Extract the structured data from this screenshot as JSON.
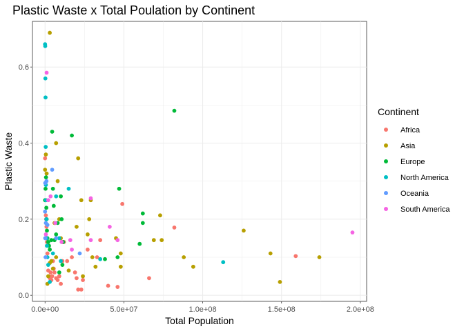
{
  "chart_data": {
    "type": "scatter",
    "title": "Plastic Waste x Total Poulation by Continent",
    "xlabel": "Total Population",
    "ylabel": "Plastic Waste",
    "xlim": [
      -8000000,
      204000000
    ],
    "ylim": [
      -0.016,
      0.72
    ],
    "x_ticks": [
      0,
      50000000,
      100000000,
      150000000,
      200000000
    ],
    "x_tick_labels": [
      "0.0e+00",
      "5.0e+07",
      "1.0e+08",
      "1.5e+08",
      "2.0e+08"
    ],
    "y_ticks": [
      0.0,
      0.2,
      0.4,
      0.6
    ],
    "y_tick_labels": [
      "0.0",
      "0.2",
      "0.4",
      "0.6"
    ],
    "grid": true,
    "legend": {
      "title": "Continent",
      "placement": "right"
    },
    "series": [
      {
        "name": "Africa",
        "color": "#F8766D",
        "points": [
          [
            0,
            0.36
          ],
          [
            300000,
            0.25
          ],
          [
            500000,
            0.21
          ],
          [
            700000,
            0.2
          ],
          [
            900000,
            0.18
          ],
          [
            1200000,
            0.14
          ],
          [
            1500000,
            0.11
          ],
          [
            2000000,
            0.065
          ],
          [
            2500000,
            0.05
          ],
          [
            3000000,
            0.045
          ],
          [
            3500000,
            0.06
          ],
          [
            4000000,
            0.04
          ],
          [
            4500000,
            0.05
          ],
          [
            5000000,
            0.09
          ],
          [
            5500000,
            0.07
          ],
          [
            6000000,
            0.06
          ],
          [
            7000000,
            0.045
          ],
          [
            8000000,
            0.04
          ],
          [
            9000000,
            0.05
          ],
          [
            10000000,
            0.03
          ],
          [
            11000000,
            0.09
          ],
          [
            12000000,
            0.14
          ],
          [
            14000000,
            0.09
          ],
          [
            17000000,
            0.1
          ],
          [
            19000000,
            0.06
          ],
          [
            20000000,
            0.045
          ],
          [
            21000000,
            0.015
          ],
          [
            23000000,
            0.015
          ],
          [
            24000000,
            0.04
          ],
          [
            27000000,
            0.12
          ],
          [
            33000000,
            0.1
          ],
          [
            35000000,
            0.145
          ],
          [
            40000000,
            0.025
          ],
          [
            46000000,
            0.022
          ],
          [
            49000000,
            0.24
          ],
          [
            66000000,
            0.045
          ],
          [
            82000000,
            0.178
          ],
          [
            159000000,
            0.103
          ]
        ]
      },
      {
        "name": "Asia",
        "color": "#B79F00",
        "points": [
          [
            3000000,
            0.69
          ],
          [
            500000,
            0.37
          ],
          [
            0,
            0.33
          ],
          [
            1000000,
            0.32
          ],
          [
            7000000,
            0.4
          ],
          [
            21000000,
            0.36
          ],
          [
            8000000,
            0.3
          ],
          [
            23000000,
            0.25
          ],
          [
            28000000,
            0.2
          ],
          [
            29000000,
            0.25
          ],
          [
            20000000,
            0.18
          ],
          [
            9000000,
            0.2
          ],
          [
            6000000,
            0.19
          ],
          [
            1500000,
            0.03
          ],
          [
            2000000,
            0.05
          ],
          [
            3000000,
            0.085
          ],
          [
            4000000,
            0.09
          ],
          [
            5000000,
            0.07
          ],
          [
            7000000,
            0.1
          ],
          [
            10000000,
            0.15
          ],
          [
            11000000,
            0.14
          ],
          [
            15000000,
            0.065
          ],
          [
            24000000,
            0.05
          ],
          [
            27000000,
            0.16
          ],
          [
            30000000,
            0.1
          ],
          [
            32000000,
            0.075
          ],
          [
            45000000,
            0.15
          ],
          [
            48000000,
            0.11
          ],
          [
            48000000,
            0.075
          ],
          [
            69000000,
            0.145
          ],
          [
            73000000,
            0.21
          ],
          [
            74000000,
            0.145
          ],
          [
            88000000,
            0.1
          ],
          [
            94000000,
            0.075
          ],
          [
            126000000,
            0.17
          ],
          [
            143000000,
            0.11
          ],
          [
            149000000,
            0.035
          ],
          [
            174000000,
            0.1
          ]
        ]
      },
      {
        "name": "Europe",
        "color": "#00BA38",
        "points": [
          [
            0,
            0.25
          ],
          [
            300000,
            0.28
          ],
          [
            600000,
            0.31
          ],
          [
            800000,
            0.23
          ],
          [
            1000000,
            0.2
          ],
          [
            1200000,
            0.17
          ],
          [
            1500000,
            0.15
          ],
          [
            2000000,
            0.14
          ],
          [
            2500000,
            0.13
          ],
          [
            3000000,
            0.12
          ],
          [
            4000000,
            0.145
          ],
          [
            4500000,
            0.43
          ],
          [
            5000000,
            0.28
          ],
          [
            5500000,
            0.235
          ],
          [
            6000000,
            0.145
          ],
          [
            7000000,
            0.16
          ],
          [
            8000000,
            0.19
          ],
          [
            9000000,
            0.06
          ],
          [
            10000000,
            0.26
          ],
          [
            10500000,
            0.2
          ],
          [
            11000000,
            0.08
          ],
          [
            11500000,
            0.14
          ],
          [
            17000000,
            0.42
          ],
          [
            38000000,
            0.095
          ],
          [
            46000000,
            0.1
          ],
          [
            47000000,
            0.28
          ],
          [
            60000000,
            0.135
          ],
          [
            62000000,
            0.19
          ],
          [
            62000000,
            0.215
          ],
          [
            82000000,
            0.485
          ]
        ]
      },
      {
        "name": "North America",
        "color": "#00BFC4",
        "points": [
          [
            0,
            0.66
          ],
          [
            100000,
            0.655
          ],
          [
            200000,
            0.57
          ],
          [
            300000,
            0.52
          ],
          [
            400000,
            0.39
          ],
          [
            500000,
            0.29
          ],
          [
            600000,
            0.25
          ],
          [
            800000,
            0.2
          ],
          [
            1000000,
            0.15
          ],
          [
            1200000,
            0.13
          ],
          [
            1500000,
            0.1
          ],
          [
            2000000,
            0.08
          ],
          [
            3000000,
            0.035
          ],
          [
            5000000,
            0.11
          ],
          [
            7000000,
            0.26
          ],
          [
            9000000,
            0.15
          ],
          [
            10000000,
            0.09
          ],
          [
            15000000,
            0.28
          ],
          [
            35000000,
            0.095
          ],
          [
            113000000,
            0.087
          ]
        ]
      },
      {
        "name": "Oceania",
        "color": "#619CFF",
        "points": [
          [
            0,
            0.22
          ],
          [
            100000,
            0.15
          ],
          [
            300000,
            0.1
          ],
          [
            500000,
            0.19
          ],
          [
            900000,
            0.3
          ],
          [
            4500000,
            0.33
          ],
          [
            7000000,
            0.15
          ],
          [
            22000000,
            0.11
          ],
          [
            1500000,
            0.185
          ],
          [
            100000,
            0.295
          ]
        ]
      },
      {
        "name": "South America",
        "color": "#F564E3",
        "points": [
          [
            1000000,
            0.585
          ],
          [
            500000,
            0.16
          ],
          [
            2000000,
            0.25
          ],
          [
            3500000,
            0.26
          ],
          [
            6500000,
            0.19
          ],
          [
            10500000,
            0.14
          ],
          [
            16000000,
            0.145
          ],
          [
            17000000,
            0.12
          ],
          [
            29000000,
            0.255
          ],
          [
            29000000,
            0.145
          ],
          [
            41000000,
            0.18
          ],
          [
            46000000,
            0.145
          ],
          [
            195000000,
            0.165
          ]
        ]
      }
    ]
  }
}
